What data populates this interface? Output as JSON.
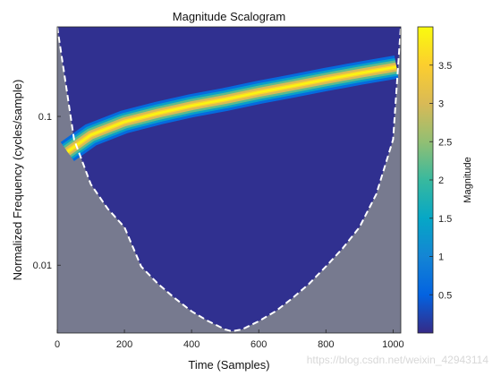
{
  "chart_data": {
    "type": "heatmap",
    "title": "Magnitude Scalogram",
    "xlabel": "Time (Samples)",
    "ylabel": "Normalized Frequency  (cycles/sample)",
    "x_scale": "linear",
    "y_scale": "log",
    "xlim": [
      0,
      1023
    ],
    "ylim": [
      0.0035,
      0.4
    ],
    "x_ticks": [
      0,
      200,
      400,
      600,
      800,
      1000
    ],
    "x_tick_labels": [
      "0",
      "200",
      "400",
      "600",
      "800",
      "1000"
    ],
    "y_ticks": [
      0.01,
      0.1
    ],
    "y_tick_labels": [
      "0.01",
      "0.1"
    ],
    "ridge": {
      "description_from_image": "bright chirp ridge of maximum magnitude",
      "time": [
        30,
        100,
        200,
        300,
        400,
        500,
        600,
        700,
        800,
        900,
        1010
      ],
      "frequency": [
        0.058,
        0.075,
        0.092,
        0.105,
        0.118,
        0.13,
        0.145,
        0.16,
        0.177,
        0.195,
        0.215
      ],
      "peak_magnitude": 3.95
    },
    "cone_of_influence": {
      "style": "white dashed line, shaded region outside",
      "time": [
        0,
        50,
        100,
        150,
        200,
        250,
        300,
        350,
        400,
        450,
        500,
        520,
        550,
        600,
        650,
        700,
        750,
        800,
        850,
        900,
        950,
        1000,
        1023
      ],
      "frequency": [
        0.4,
        0.07,
        0.035,
        0.024,
        0.018,
        0.0098,
        0.0075,
        0.006,
        0.0049,
        0.0042,
        0.0037,
        0.0036,
        0.0037,
        0.0042,
        0.0049,
        0.006,
        0.0075,
        0.0098,
        0.013,
        0.018,
        0.03,
        0.07,
        0.4
      ]
    },
    "background_magnitude": 0.05,
    "colorbar": {
      "label": "Magnitude",
      "min": 0,
      "max": 4,
      "ticks": [
        0.5,
        1,
        1.5,
        2,
        2.5,
        3,
        3.5
      ],
      "tick_labels": [
        "0.5",
        "1",
        "1.5",
        "2",
        "2.5",
        "3",
        "3.5"
      ],
      "colormap": "parula"
    },
    "colors": {
      "shaded_outside_coi": "#777a8f",
      "coi_line": "#ffffff"
    }
  },
  "watermark": "https://blog.csdn.net/weixin_42943114"
}
